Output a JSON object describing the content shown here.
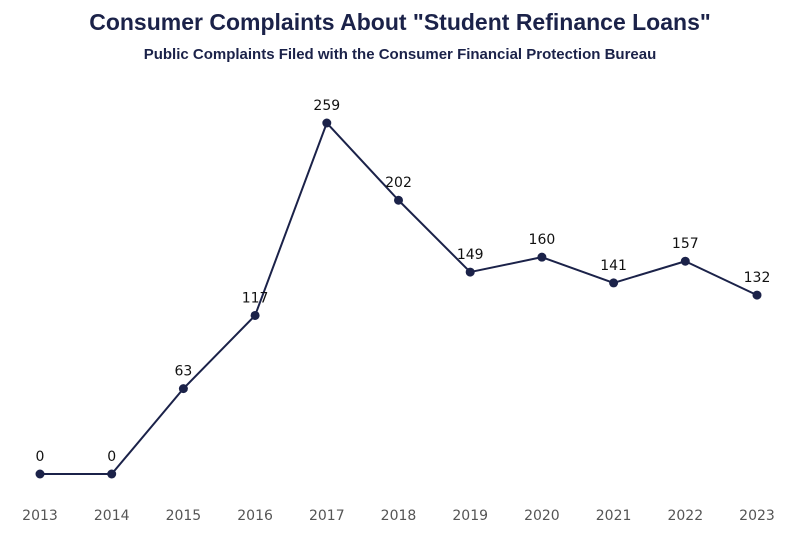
{
  "chart_data": {
    "type": "line",
    "title": "Consumer Complaints About \"Student Refinance Loans\"",
    "subtitle": "Public Complaints Filed with the Consumer Financial Protection Bureau",
    "xlabel": "",
    "ylabel": "",
    "categories": [
      "2013",
      "2014",
      "2015",
      "2016",
      "2017",
      "2018",
      "2019",
      "2020",
      "2021",
      "2022",
      "2023"
    ],
    "series": [
      {
        "values": [
          0,
          0,
          63,
          117,
          259,
          202,
          149,
          160,
          141,
          157,
          132
        ],
        "color": "#1b2249"
      }
    ],
    "ylim": [
      0,
      259
    ],
    "grid": false,
    "legend": "none",
    "data_labels": true
  }
}
